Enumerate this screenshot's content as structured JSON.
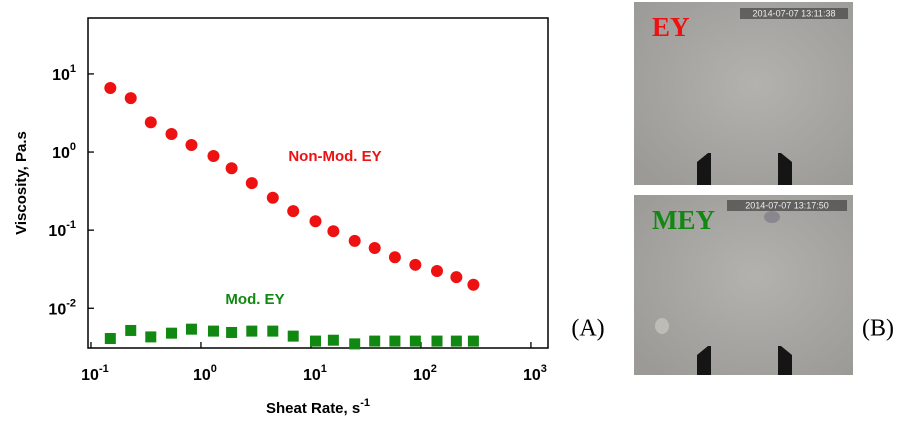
{
  "chart_data": {
    "type": "scatter",
    "x_label": "Sheat Rate, s",
    "x_label_exponent": "-1",
    "y_label": "Viscosity, Pa.s",
    "xscale": "log",
    "yscale": "log",
    "xlim": [
      0.094,
      1430
    ],
    "ylim": [
      0.0031,
      52
    ],
    "xticks": [
      {
        "value": 0.1,
        "label": "10",
        "exponent": "-1"
      },
      {
        "value": 1,
        "label": "10",
        "exponent": "0"
      },
      {
        "value": 10,
        "label": "10",
        "exponent": "1"
      },
      {
        "value": 100,
        "label": "10",
        "exponent": "2"
      },
      {
        "value": 1000,
        "label": "10",
        "exponent": "3"
      }
    ],
    "yticks": [
      {
        "value": 0.01,
        "label": "10",
        "exponent": "-2"
      },
      {
        "value": 0.1,
        "label": "10",
        "exponent": "-1"
      },
      {
        "value": 1,
        "label": "10",
        "exponent": "0"
      },
      {
        "value": 10,
        "label": "10",
        "exponent": "1"
      }
    ],
    "x": [
      0.15,
      0.23,
      0.35,
      0.54,
      0.82,
      1.3,
      1.9,
      2.9,
      4.5,
      6.9,
      11,
      16,
      25,
      38,
      58,
      89,
      140,
      210,
      300
    ],
    "series": [
      {
        "name": "Non-Mod. EY",
        "color": "#ee1111",
        "marker": "circle",
        "values": [
          6.6,
          4.9,
          2.4,
          1.7,
          1.23,
          0.89,
          0.62,
          0.4,
          0.26,
          0.175,
          0.13,
          0.097,
          0.073,
          0.059,
          0.045,
          0.036,
          0.03,
          0.025,
          0.02
        ]
      },
      {
        "name": "Mod. EY",
        "color": "#118811",
        "marker": "square",
        "values": [
          0.0041,
          0.0052,
          0.0043,
          0.0048,
          0.0054,
          0.0051,
          0.0049,
          0.0051,
          0.0051,
          0.0044,
          0.0038,
          0.0039,
          0.0035,
          0.0038,
          0.0038,
          0.0038,
          0.0038,
          0.0038,
          0.0038
        ]
      }
    ],
    "panel_label": "(A)"
  },
  "images": {
    "panel_label": "(B)",
    "top": {
      "label": "EY",
      "timestamp": "2014-07-07 13:11:38"
    },
    "bottom": {
      "label": "MEY",
      "timestamp": "2014-07-07 13:17:50"
    }
  }
}
